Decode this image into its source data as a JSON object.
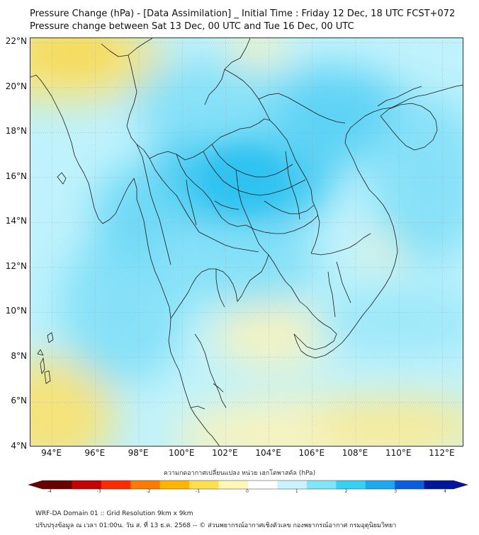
{
  "title_line1": "Pressure Change (hPa) - [Data Assimilation] _ Initial Time : Friday 12 Dec, 18 UTC FCST+072",
  "title_line2": "Pressure change between Sat 13 Dec, 00 UTC and Tue 16 Dec, 00 UTC",
  "map": {
    "lon_range": [
      93,
      113
    ],
    "lat_range": [
      4,
      22.2
    ],
    "lat_ticks": [
      22,
      20,
      18,
      16,
      14,
      12,
      10,
      8,
      6,
      4
    ],
    "lat_labels": [
      "22°N",
      "20°N",
      "18°N",
      "16°N",
      "14°N",
      "12°N",
      "10°N",
      "8°N",
      "6°N",
      "4°N"
    ],
    "lon_ticks": [
      94,
      96,
      98,
      100,
      102,
      104,
      106,
      108,
      110,
      112
    ],
    "lon_labels": [
      "94°E",
      "96°E",
      "98°E",
      "100°E",
      "102°E",
      "104°E",
      "106°E",
      "108°E",
      "110°E",
      "112°E"
    ]
  },
  "colorbar": {
    "caption": "ความกดอากาศเปลี่ยนแปลง หน่วย เฮกโตพาสคัล (hPa)",
    "min": -4,
    "max": 4,
    "tick_values": [
      -4,
      -3,
      -2,
      -1,
      0,
      1,
      2,
      3,
      4
    ],
    "tick_labels": [
      "-4",
      "-3",
      "-2",
      "-1",
      "0",
      "1",
      "2",
      "3",
      "4"
    ],
    "colors": [
      "#6b0000",
      "#c80000",
      "#ff2a00",
      "#ff7a00",
      "#ffb400",
      "#ffe04a",
      "#fff7b4",
      "#ffffff",
      "#c8f4ff",
      "#7fe6fa",
      "#33d2f5",
      "#1aa8f0",
      "#0a5fe0",
      "#00149c"
    ]
  },
  "field_colors": {
    "base": "#bff2fc",
    "strong_blue": "#3fc9f2",
    "mid_blue": "#86e1f8",
    "pale_yellow": "#f6f3c0",
    "yellow": "#f5e37c"
  },
  "footer_line1": "WRF-DA Domain 01 :: Grid Resolution 9km x 9km",
  "footer_line2": "ปรับปรุงข้อมูล ณ เวลา 01:00น. วัน ส. ที่ 13 ธ.ค. 2568 -- © ส่วนพยากรณ์อากาศเชิงตัวเลข กองพยากรณ์อากาศ กรมอุตุนิยมวิทยา"
}
